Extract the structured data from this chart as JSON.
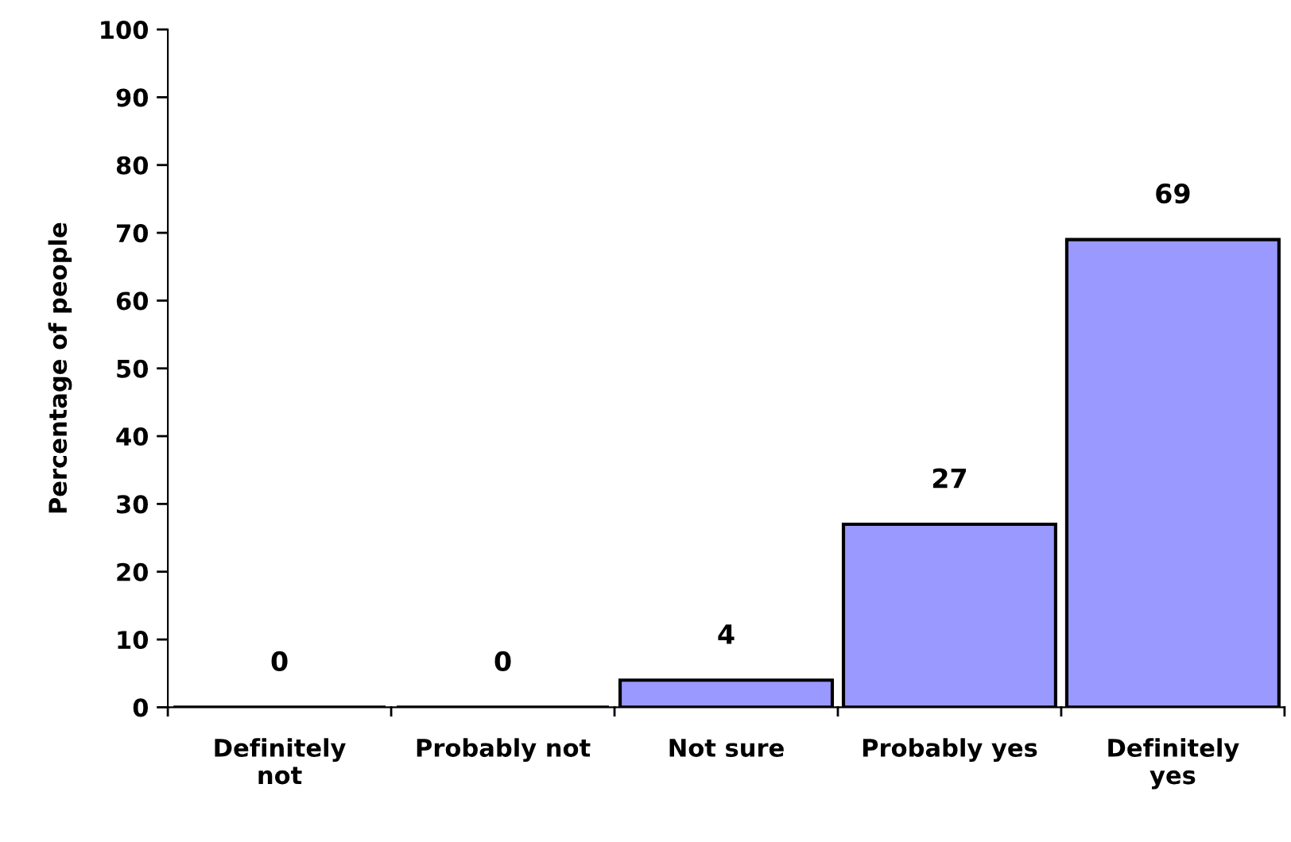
{
  "chart_data": {
    "type": "bar",
    "ylabel": "Percentage of people",
    "categories": [
      "Definitely\nnot",
      "Probably not",
      "Not sure",
      "Probably yes",
      "Definitely\nyes"
    ],
    "values": [
      0,
      0,
      4,
      27,
      69
    ],
    "color": "#9999ff",
    "ylim": [
      0,
      100
    ],
    "yticks": [
      0,
      10,
      20,
      30,
      40,
      50,
      60,
      70,
      80,
      90,
      100
    ],
    "data_labels": true,
    "grid": false,
    "legend": false
  }
}
